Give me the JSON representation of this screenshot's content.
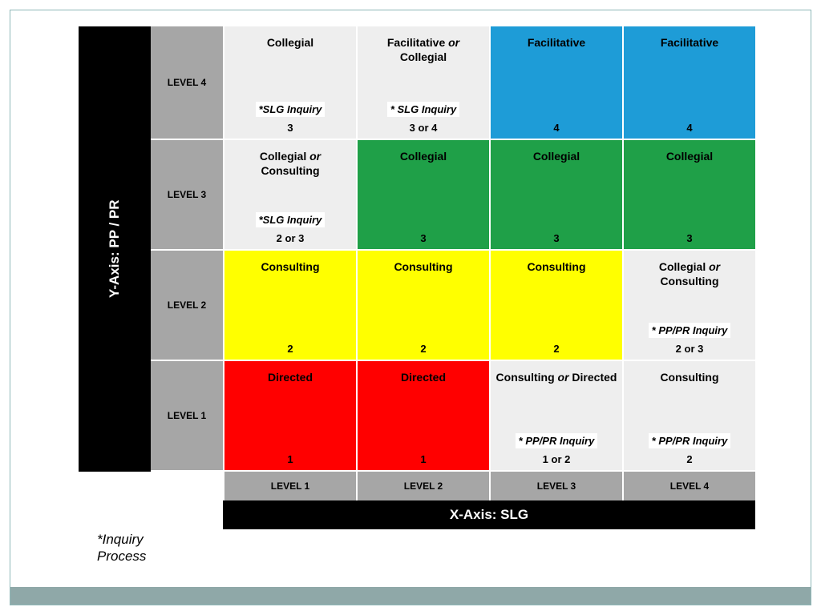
{
  "axes": {
    "y_label": "Y-Axis: PP / PR",
    "x_label": "X-Axis: SLG"
  },
  "row_labels": [
    "LEVEL 4",
    "LEVEL 3",
    "LEVEL 2",
    "LEVEL 1"
  ],
  "col_labels": [
    "LEVEL 1",
    "LEVEL 2",
    "LEVEL 3",
    "LEVEL 4"
  ],
  "footnote": "*Inquiry\nProcess",
  "colors": {
    "black": "#000000",
    "gray": "#a6a6a6",
    "light": "#eeeeee",
    "blue": "#1e9cd7",
    "green": "#1fa048",
    "yellow": "#ffff00",
    "red": "#ff0000",
    "border": "#8fb8b8",
    "footer": "#8fa8a8"
  },
  "cells": [
    [
      {
        "title": "Collegial",
        "inquiry": "*SLG  Inquiry",
        "num": "3",
        "bg": "#eeeeee",
        "show_inq": true
      },
      {
        "title": "Facilitative <i>or</i> Collegial",
        "inquiry": "* SLG Inquiry",
        "num": "3 or 4",
        "bg": "#eeeeee",
        "show_inq": true
      },
      {
        "title": "Facilitative",
        "inquiry": "",
        "num": "4",
        "bg": "#1e9cd7",
        "show_inq": false
      },
      {
        "title": "Facilitative",
        "inquiry": "",
        "num": "4",
        "bg": "#1e9cd7",
        "show_inq": false
      }
    ],
    [
      {
        "title": "Collegial <i>or</i> Consulting",
        "inquiry": "*SLG Inquiry",
        "num": "2 or 3",
        "bg": "#eeeeee",
        "show_inq": true
      },
      {
        "title": "Collegial",
        "inquiry": "",
        "num": "3",
        "bg": "#1fa048",
        "show_inq": false
      },
      {
        "title": "Collegial",
        "inquiry": "",
        "num": "3",
        "bg": "#1fa048",
        "show_inq": false
      },
      {
        "title": "Collegial",
        "inquiry": "",
        "num": "3",
        "bg": "#1fa048",
        "show_inq": false
      }
    ],
    [
      {
        "title": "Consulting",
        "inquiry": "",
        "num": "2",
        "bg": "#ffff00",
        "show_inq": false
      },
      {
        "title": "Consulting",
        "inquiry": "",
        "num": "2",
        "bg": "#ffff00",
        "show_inq": false
      },
      {
        "title": "Consulting",
        "inquiry": "",
        "num": "2",
        "bg": "#ffff00",
        "show_inq": false
      },
      {
        "title": "Collegial <i>or</i> Consulting",
        "inquiry": "* PP/PR Inquiry",
        "num": "2 or 3",
        "bg": "#eeeeee",
        "show_inq": true
      }
    ],
    [
      {
        "title": "Directed",
        "inquiry": "",
        "num": "1",
        "bg": "#ff0000",
        "show_inq": false
      },
      {
        "title": "Directed",
        "inquiry": "",
        "num": "1",
        "bg": "#ff0000",
        "show_inq": false
      },
      {
        "title": "Consulting <i>or</i> Directed",
        "inquiry": "* PP/PR Inquiry",
        "num": "1 or 2",
        "bg": "#eeeeee",
        "show_inq": true
      },
      {
        "title": "Consulting",
        "inquiry": "* PP/PR Inquiry",
        "num": "2",
        "bg": "#eeeeee",
        "show_inq": true
      }
    ]
  ]
}
